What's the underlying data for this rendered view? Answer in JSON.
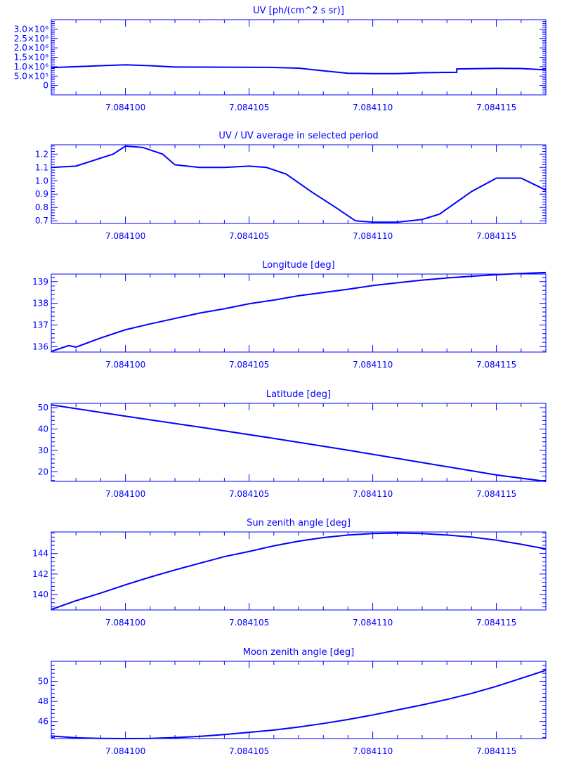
{
  "colors": {
    "background": "#ffffff",
    "ink": "#0000ff"
  },
  "chart_data": [
    {
      "type": "line",
      "title": "UV [ph/(cm^2 s sr)]",
      "xlabel": "",
      "ylabel": "",
      "xlim": [
        7.084097,
        7.084117
      ],
      "ylim": [
        -500000,
        3500000
      ],
      "x_ticks": [
        "7.084100",
        "7.084105",
        "7.084110",
        "7.084115"
      ],
      "x_tick_values": [
        7.0841,
        7.084105,
        7.08411,
        7.084115
      ],
      "y_ticks": [
        "0",
        "5.0×10⁵",
        "1.0×10⁶",
        "1.5×10⁶",
        "2.0×10⁶",
        "2.5×10⁶",
        "3.0×10⁶"
      ],
      "y_tick_values": [
        0,
        500000,
        1000000,
        1500000,
        2000000,
        2500000,
        3000000
      ],
      "x": [
        7.084097,
        7.084098,
        7.084099,
        7.0841,
        7.084101,
        7.084102,
        7.084104,
        7.084106,
        7.084107,
        7.084108,
        7.084109,
        7.08411,
        7.084111,
        7.084112,
        7.0841134,
        7.0841134,
        7.084115,
        7.084116,
        7.084117
      ],
      "y": [
        950000,
        1000000,
        1050000,
        1100000,
        1050000,
        980000,
        970000,
        960000,
        920000,
        780000,
        650000,
        630000,
        630000,
        680000,
        700000,
        880000,
        910000,
        900000,
        830000
      ]
    },
    {
      "type": "line",
      "title": "UV / UV average in selected period",
      "xlabel": "",
      "ylabel": "",
      "xlim": [
        7.084097,
        7.084117
      ],
      "ylim": [
        0.68,
        1.27
      ],
      "x_ticks": [
        "7.084100",
        "7.084105",
        "7.084110",
        "7.084115"
      ],
      "x_tick_values": [
        7.0841,
        7.084105,
        7.08411,
        7.084115
      ],
      "y_ticks": [
        "0.7",
        "0.8",
        "0.9",
        "1.0",
        "1.1",
        "1.2"
      ],
      "y_tick_values": [
        0.7,
        0.8,
        0.9,
        1.0,
        1.1,
        1.2
      ],
      "x": [
        7.084097,
        7.084098,
        7.084099,
        7.0840995,
        7.0841,
        7.0841007,
        7.0841015,
        7.084102,
        7.084103,
        7.084104,
        7.084105,
        7.0841057,
        7.0841065,
        7.0841075,
        7.0841085,
        7.0841093,
        7.08411,
        7.084111,
        7.084112,
        7.0841127,
        7.084114,
        7.084115,
        7.084116,
        7.084117
      ],
      "y": [
        1.1,
        1.11,
        1.17,
        1.2,
        1.26,
        1.25,
        1.2,
        1.12,
        1.1,
        1.1,
        1.11,
        1.1,
        1.05,
        0.92,
        0.8,
        0.7,
        0.69,
        0.69,
        0.71,
        0.75,
        0.92,
        1.02,
        1.02,
        0.93
      ]
    },
    {
      "type": "line",
      "title": "Longitude [deg]",
      "xlabel": "",
      "ylabel": "",
      "xlim": [
        7.084097,
        7.084117
      ],
      "ylim": [
        135.75,
        139.35
      ],
      "x_ticks": [
        "7.084100",
        "7.084105",
        "7.084110",
        "7.084115"
      ],
      "x_tick_values": [
        7.0841,
        7.084105,
        7.08411,
        7.084115
      ],
      "y_ticks": [
        "136",
        "137",
        "138",
        "139"
      ],
      "y_tick_values": [
        136,
        137,
        138,
        139
      ],
      "x": [
        7.084097,
        7.0840977,
        7.084098,
        7.084099,
        7.0841,
        7.084101,
        7.084102,
        7.084103,
        7.084104,
        7.084105,
        7.084106,
        7.084107,
        7.084108,
        7.084109,
        7.08411,
        7.084111,
        7.084112,
        7.084113,
        7.084114,
        7.084115,
        7.084116,
        7.084117
      ],
      "y": [
        135.78,
        136.05,
        135.98,
        136.4,
        136.78,
        137.05,
        137.3,
        137.55,
        137.75,
        137.98,
        138.15,
        138.35,
        138.5,
        138.65,
        138.82,
        138.95,
        139.07,
        139.17,
        139.25,
        139.32,
        139.38,
        139.42
      ]
    },
    {
      "type": "line",
      "title": "Latitude [deg]",
      "xlabel": "",
      "ylabel": "",
      "xlim": [
        7.084097,
        7.084117
      ],
      "ylim": [
        15.5,
        52.0
      ],
      "x_ticks": [
        "7.084100",
        "7.084105",
        "7.084110",
        "7.084115"
      ],
      "x_tick_values": [
        7.0841,
        7.084105,
        7.08411,
        7.084115
      ],
      "y_ticks": [
        "20",
        "30",
        "40",
        "50"
      ],
      "y_tick_values": [
        20,
        30,
        40,
        50
      ],
      "x": [
        7.084097,
        7.0841,
        7.084103,
        7.084106,
        7.084109,
        7.084112,
        7.084115,
        7.084117
      ],
      "y": [
        51.3,
        46.0,
        40.9,
        35.6,
        30.1,
        24.3,
        18.5,
        15.5
      ]
    },
    {
      "type": "line",
      "title": "Sun zenith angle [deg]",
      "xlabel": "",
      "ylabel": "",
      "xlim": [
        7.084097,
        7.084117
      ],
      "ylim": [
        138.5,
        146.1
      ],
      "x_ticks": [
        "7.084100",
        "7.084105",
        "7.084110",
        "7.084115"
      ],
      "x_tick_values": [
        7.0841,
        7.084105,
        7.08411,
        7.084115
      ],
      "y_ticks": [
        "140",
        "142",
        "144"
      ],
      "y_tick_values": [
        140,
        142,
        144
      ],
      "x": [
        7.084097,
        7.084098,
        7.084099,
        7.0841,
        7.084101,
        7.084102,
        7.084103,
        7.084104,
        7.084105,
        7.084106,
        7.084107,
        7.084108,
        7.084109,
        7.08411,
        7.084111,
        7.084112,
        7.084113,
        7.084114,
        7.084115,
        7.084116,
        7.084117
      ],
      "y": [
        138.55,
        139.4,
        140.15,
        140.95,
        141.7,
        142.4,
        143.05,
        143.7,
        144.2,
        144.75,
        145.2,
        145.55,
        145.8,
        145.95,
        146.0,
        145.95,
        145.8,
        145.6,
        145.3,
        144.9,
        144.45
      ]
    },
    {
      "type": "line",
      "title": "Moon zenith angle [deg]",
      "xlabel": "",
      "ylabel": "",
      "xlim": [
        7.084097,
        7.084117
      ],
      "ylim": [
        44.3,
        52.0
      ],
      "x_ticks": [
        "7.084100",
        "7.084105",
        "7.084110",
        "7.084115"
      ],
      "x_tick_values": [
        7.0841,
        7.084105,
        7.08411,
        7.084115
      ],
      "y_ticks": [
        "46",
        "48",
        "50"
      ],
      "y_tick_values": [
        46,
        48,
        50
      ],
      "x": [
        7.084097,
        7.084098,
        7.084099,
        7.0841,
        7.084101,
        7.084102,
        7.084103,
        7.084104,
        7.084105,
        7.084106,
        7.084107,
        7.084108,
        7.084109,
        7.08411,
        7.084111,
        7.084112,
        7.084113,
        7.084114,
        7.084115,
        7.084116,
        7.084117
      ],
      "y": [
        44.55,
        44.38,
        44.32,
        44.3,
        44.32,
        44.4,
        44.52,
        44.7,
        44.92,
        45.15,
        45.45,
        45.8,
        46.2,
        46.65,
        47.15,
        47.65,
        48.2,
        48.8,
        49.5,
        50.3,
        51.1
      ]
    }
  ]
}
